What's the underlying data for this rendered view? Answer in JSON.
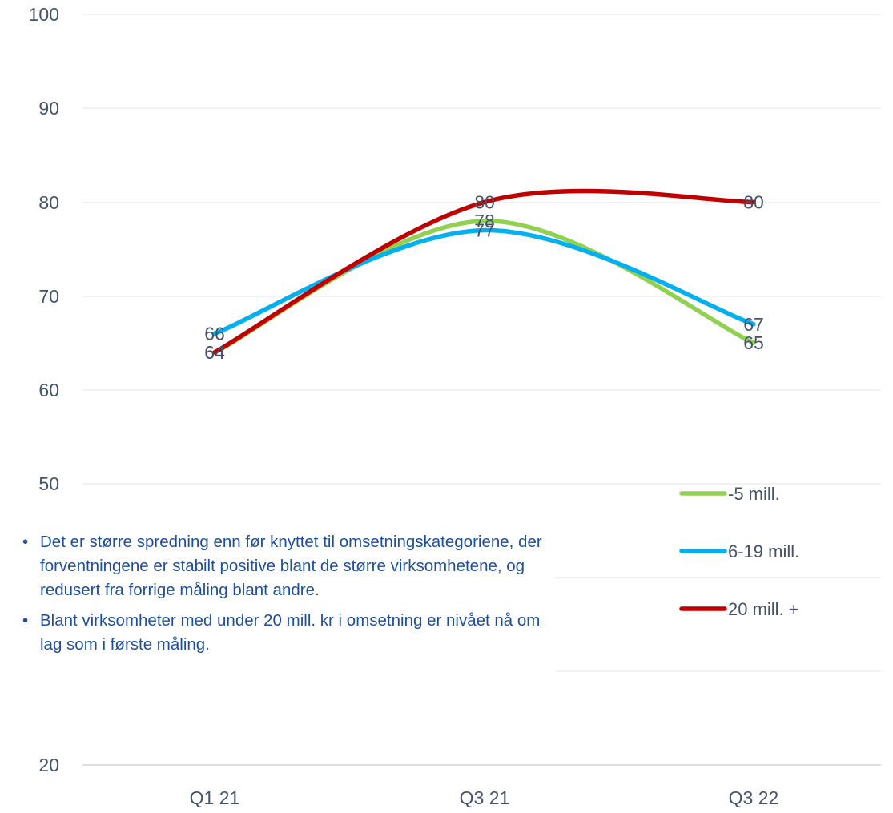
{
  "chart_data": {
    "type": "line",
    "smooth": true,
    "categories": [
      "Q1 21",
      "Q3 21",
      "Q3 22"
    ],
    "y_ticks": [
      "100",
      "90",
      "80",
      "70",
      "60",
      "50",
      "20"
    ],
    "series": [
      {
        "name": "-5 mill.",
        "values": [
          64,
          78,
          65
        ],
        "labels": [
          "64",
          "78",
          "65"
        ],
        "color": "#92D050"
      },
      {
        "name": "6-19 mill.",
        "values": [
          66,
          77,
          67
        ],
        "labels": [
          "66",
          "77",
          "67"
        ],
        "color": "#00B0F0"
      },
      {
        "name": "20 mill. +",
        "values": [
          64,
          80,
          80
        ],
        "labels": [
          "64",
          "80",
          "80"
        ],
        "color": "#C00000"
      }
    ],
    "legend_position": "right",
    "grid": true
  },
  "notes": [
    "Det er større spredning enn før knyttet til omsetningskategoriene, der forventningene er stabilt positive blant de større virksomhetene, og redusert fra forrige måling blant andre.",
    "Blant virksomheter med under 20 mill. kr i omsetning er nivået nå om lag som i første måling."
  ],
  "bullet_char": "•"
}
